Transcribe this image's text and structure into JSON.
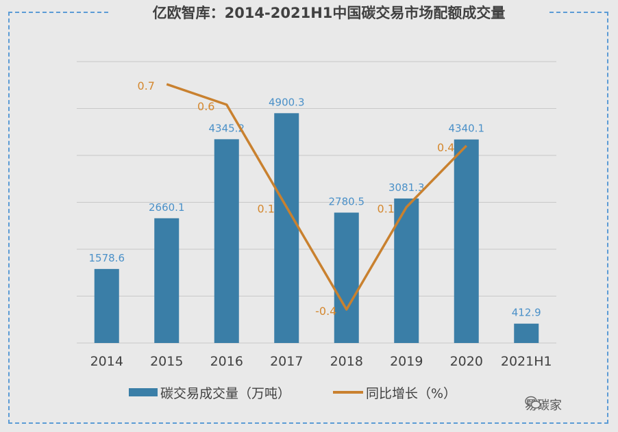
{
  "title": "亿欧智库：2014-2021H1中国碳交易市场配额成交量",
  "watermark": "易碳家",
  "colors": {
    "bar": "#3a7ea7",
    "line": "#c9812f",
    "bar_label": "#4a90c8",
    "line_label": "#d4872e",
    "grid": "#c8c8c8"
  },
  "chart_data": {
    "type": "bar",
    "title": "亿欧智库：2014-2021H1中国碳交易市场配额成交量",
    "categories": [
      "2014",
      "2015",
      "2016",
      "2017",
      "2018",
      "2019",
      "2020",
      "2021H1"
    ],
    "series": [
      {
        "name": "碳交易成交量（万吨）",
        "type": "bar",
        "values": [
          1578.6,
          2660.1,
          4345.2,
          4900.3,
          2780.5,
          3081.3,
          4340.1,
          412.9
        ],
        "labels": [
          "1578.6",
          "2660.1",
          "4345.2",
          "4900.3",
          "2780.5",
          "3081.3",
          "4340.1",
          "412.9"
        ]
      },
      {
        "name": "同比增长（%）",
        "type": "line",
        "values": [
          null,
          0.7,
          0.6,
          0.1,
          -0.4,
          0.1,
          0.4,
          null
        ],
        "labels": [
          "",
          "0.7",
          "0.6",
          "0.1",
          "-0.4",
          "0.1",
          "0.4",
          ""
        ]
      }
    ],
    "legend": "bottom",
    "grid": true,
    "bar_axis_range": [
      0,
      6000
    ]
  }
}
